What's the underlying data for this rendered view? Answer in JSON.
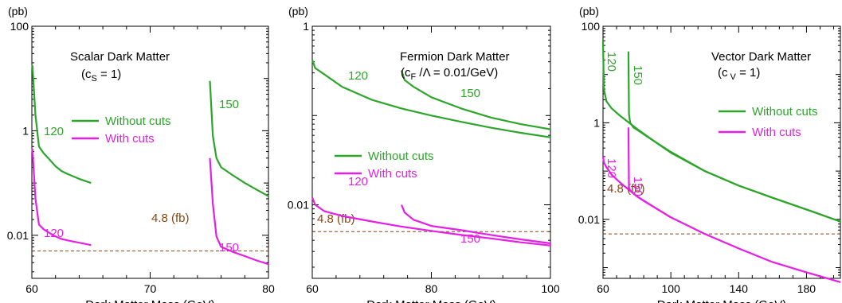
{
  "colors": {
    "without": "#2ca52a",
    "with": "#e61ee6",
    "ref": "#8b4513"
  },
  "legend": {
    "without_label": "Without cuts",
    "with_label": "With cuts"
  },
  "chart_data": [
    {
      "type": "line",
      "title": "Scalar Dark Matter",
      "title_line2": "(c",
      "title_sub": "S",
      "title_line2_tail": " = 1)",
      "xlabel": "Dark Matter Mass (GeV)",
      "ylabel": "(pb)",
      "yscale": "log",
      "xlim": [
        60,
        80
      ],
      "ylim": [
        0.0015,
        100
      ],
      "xticks": [
        60,
        70,
        80
      ],
      "xtick_labels": [
        "60",
        "70",
        "80"
      ],
      "yticks": [
        0.01,
        1,
        100
      ],
      "ytick_labels": [
        "0.01",
        "1",
        "100"
      ],
      "reference_line": {
        "value": 0.005,
        "label": "4.8 (fb)"
      },
      "series": [
        {
          "name": "Without cuts",
          "kind": "without",
          "label": "120",
          "x": [
            60.05,
            60.3,
            60.6,
            61,
            61.5,
            62,
            62.5,
            63,
            64,
            65
          ],
          "y": [
            18,
            2.0,
            0.5,
            0.37,
            0.28,
            0.21,
            0.17,
            0.15,
            0.12,
            0.1
          ]
        },
        {
          "name": "With cuts",
          "kind": "with",
          "label": "120",
          "x": [
            60.05,
            60.3,
            60.6,
            61,
            61.5,
            62,
            62.5,
            63,
            64,
            65
          ],
          "y": [
            0.45,
            0.05,
            0.016,
            0.013,
            0.011,
            0.0095,
            0.0085,
            0.008,
            0.0072,
            0.0065
          ]
        },
        {
          "name": "Without cuts",
          "kind": "without",
          "label": "150",
          "x": [
            75.05,
            75.3,
            75.6,
            76,
            77,
            78,
            79,
            80
          ],
          "y": [
            9,
            0.8,
            0.3,
            0.2,
            0.14,
            0.1,
            0.075,
            0.056
          ]
        },
        {
          "name": "With cuts",
          "kind": "with",
          "label": "150",
          "x": [
            75.05,
            75.3,
            75.6,
            76,
            77,
            78,
            79,
            80
          ],
          "y": [
            0.3,
            0.04,
            0.0095,
            0.006,
            0.0048,
            0.004,
            0.0033,
            0.0028
          ]
        }
      ]
    },
    {
      "type": "line",
      "title": "Fermion Dark Matter",
      "title_line2": "(c",
      "title_sub": "F",
      "title_line2_tail": " /Λ = 0.01/GeV)",
      "xlabel": "Dark Matter Mass (GeV)",
      "ylabel": "(pb)",
      "yscale": "log",
      "xlim": [
        60,
        100
      ],
      "ylim": [
        0.0015,
        1
      ],
      "xticks": [
        60,
        80,
        100
      ],
      "xtick_labels": [
        "60",
        "80",
        "100"
      ],
      "yticks": [
        0.01,
        1
      ],
      "ytick_labels": [
        "0.01",
        "1"
      ],
      "reference_line": {
        "value": 0.005,
        "label": "4.8 (fb)"
      },
      "series": [
        {
          "name": "Without cuts",
          "kind": "without",
          "label": "120",
          "x": [
            60,
            60.5,
            62,
            65,
            70,
            75,
            80,
            85,
            90,
            95,
            100
          ],
          "y": [
            0.42,
            0.34,
            0.29,
            0.21,
            0.15,
            0.12,
            0.1,
            0.085,
            0.073,
            0.064,
            0.057
          ]
        },
        {
          "name": "With cuts",
          "kind": "with",
          "label": "120",
          "x": [
            60,
            60.5,
            62,
            65,
            70,
            75,
            80,
            85,
            90,
            95,
            100
          ],
          "y": [
            0.012,
            0.01,
            0.0085,
            0.0075,
            0.0065,
            0.0057,
            0.0051,
            0.0046,
            0.0042,
            0.0038,
            0.0035
          ]
        },
        {
          "name": "Without cuts",
          "kind": "without",
          "label": "150",
          "x": [
            75,
            75.5,
            77,
            80,
            85,
            90,
            95,
            100
          ],
          "y": [
            0.32,
            0.25,
            0.21,
            0.16,
            0.12,
            0.095,
            0.08,
            0.07
          ]
        },
        {
          "name": "With cuts",
          "kind": "with",
          "label": "150",
          "x": [
            75,
            75.5,
            77,
            80,
            85,
            90,
            95,
            100
          ],
          "y": [
            0.01,
            0.0082,
            0.0068,
            0.0058,
            0.0052,
            0.0046,
            0.0041,
            0.0037
          ]
        }
      ]
    },
    {
      "type": "line",
      "title": "Vector Dark Matter",
      "title_line2": "(c",
      "title_sub": " V",
      "title_line2_tail": " = 1)",
      "xlabel": "Dark Matter Mass (GeV)",
      "ylabel": "(pb)",
      "yscale": "log",
      "xlim": [
        60,
        200
      ],
      "ylim": [
        0.0006,
        100
      ],
      "xticks": [
        60,
        100,
        140,
        180
      ],
      "xtick_labels": [
        "60",
        "100",
        "140",
        "180"
      ],
      "yticks": [
        0.01,
        1,
        100
      ],
      "ytick_labels": [
        "0.01",
        "1",
        "100"
      ],
      "reference_line": {
        "value": 0.005,
        "label": "4.8 (fb)"
      },
      "series": [
        {
          "name": "Without cuts",
          "kind": "without",
          "label": "120",
          "x": [
            60,
            60.5,
            62,
            65,
            70,
            80,
            90,
            100,
            120,
            140,
            160,
            180,
            200
          ],
          "y": [
            50,
            5,
            2.8,
            2.0,
            1.4,
            0.75,
            0.42,
            0.24,
            0.1,
            0.05,
            0.028,
            0.016,
            0.009
          ]
        },
        {
          "name": "With cuts",
          "kind": "with",
          "label": "120",
          "x": [
            60,
            60.5,
            62,
            65,
            70,
            80,
            90,
            100,
            120,
            140,
            160,
            180,
            200
          ],
          "y": [
            0.2,
            0.15,
            0.12,
            0.085,
            0.058,
            0.03,
            0.018,
            0.011,
            0.005,
            0.0025,
            0.0013,
            0.0008,
            0.0005
          ]
        },
        {
          "name": "Without cuts",
          "kind": "without",
          "label": "150",
          "x": [
            75,
            75.3,
            76,
            78,
            80,
            85,
            90,
            100,
            120,
            140,
            160,
            180,
            200
          ],
          "y": [
            30,
            1.5,
            1.0,
            0.8,
            0.72,
            0.55,
            0.42,
            0.25,
            0.1,
            0.05,
            0.028,
            0.016,
            0.009
          ]
        },
        {
          "name": "With cuts",
          "kind": "with",
          "label": "150",
          "x": [
            75,
            75.3,
            76,
            78,
            80,
            85,
            90,
            100
          ],
          "y": [
            0.8,
            0.045,
            0.04,
            0.034,
            0.03,
            0.023,
            0.018,
            0.011
          ]
        }
      ]
    }
  ]
}
